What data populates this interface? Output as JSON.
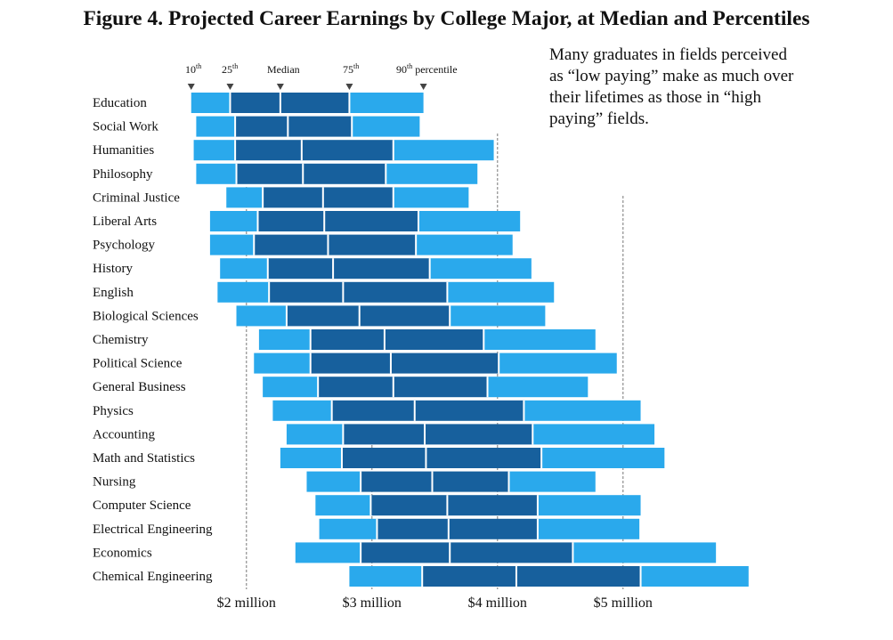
{
  "title": "Figure 4.  Projected Career Earnings by College Major, at Median and Percentiles",
  "annotation_lines": [
    "Many graduates in fields perceived",
    "as “low paying”  make as much over",
    "their lifetimes as those in “high",
    "paying”  fields."
  ],
  "colors": {
    "outer": "#2aa9ec",
    "inner": "#17609d",
    "divider": "#ffffff",
    "gridline": "#777777",
    "marker": "#444444"
  },
  "chart_data": {
    "type": "bar",
    "subtype": "floating percentile range bars",
    "unit": "dollars",
    "xlim": [
      1200000,
      5900000
    ],
    "x_ticks": [
      {
        "value": 2000000,
        "label": "$2 million"
      },
      {
        "value": 3000000,
        "label": "$3 million"
      },
      {
        "value": 4000000,
        "label": "$4 million"
      },
      {
        "value": 5000000,
        "label": "$5 million"
      }
    ],
    "percentile_labels": [
      {
        "base": "10",
        "sup": "th",
        "rest": "",
        "ref_series": 0
      },
      {
        "base": "25",
        "sup": "th",
        "rest": "",
        "ref_series": 1
      },
      {
        "base": "Median",
        "sup": "",
        "rest": "",
        "ref_series": 2
      },
      {
        "base": "75",
        "sup": "th",
        "rest": "",
        "ref_series": 3
      },
      {
        "base": "90",
        "sup": "th",
        "rest": " percentile",
        "ref_series": 4
      }
    ],
    "series_keys": [
      "p10",
      "p25",
      "median",
      "p75",
      "p90"
    ],
    "categories": [
      {
        "name": "Education",
        "p10": 1560000,
        "p25": 1870000,
        "median": 2270000,
        "p75": 2820000,
        "p90": 3410000
      },
      {
        "name": "Social Work",
        "p10": 1600000,
        "p25": 1910000,
        "median": 2330000,
        "p75": 2840000,
        "p90": 3380000
      },
      {
        "name": "Humanities",
        "p10": 1580000,
        "p25": 1910000,
        "median": 2440000,
        "p75": 3170000,
        "p90": 3970000
      },
      {
        "name": "Philosophy",
        "p10": 1600000,
        "p25": 1920000,
        "median": 2450000,
        "p75": 3110000,
        "p90": 3840000
      },
      {
        "name": "Criminal Justice",
        "p10": 1840000,
        "p25": 2130000,
        "median": 2610000,
        "p75": 3170000,
        "p90": 3770000
      },
      {
        "name": "Liberal Arts",
        "p10": 1710000,
        "p25": 2090000,
        "median": 2620000,
        "p75": 3370000,
        "p90": 4180000
      },
      {
        "name": "Psychology",
        "p10": 1710000,
        "p25": 2060000,
        "median": 2650000,
        "p75": 3350000,
        "p90": 4120000
      },
      {
        "name": "History",
        "p10": 1790000,
        "p25": 2170000,
        "median": 2690000,
        "p75": 3460000,
        "p90": 4270000
      },
      {
        "name": "English",
        "p10": 1770000,
        "p25": 2180000,
        "median": 2770000,
        "p75": 3600000,
        "p90": 4450000
      },
      {
        "name": "Biological Sciences",
        "p10": 1920000,
        "p25": 2320000,
        "median": 2900000,
        "p75": 3620000,
        "p90": 4380000
      },
      {
        "name": "Chemistry",
        "p10": 2100000,
        "p25": 2510000,
        "median": 3100000,
        "p75": 3890000,
        "p90": 4780000
      },
      {
        "name": "Political Science",
        "p10": 2060000,
        "p25": 2510000,
        "median": 3150000,
        "p75": 4010000,
        "p90": 4950000
      },
      {
        "name": "General Business",
        "p10": 2130000,
        "p25": 2570000,
        "median": 3170000,
        "p75": 3920000,
        "p90": 4720000
      },
      {
        "name": "Physics",
        "p10": 2210000,
        "p25": 2680000,
        "median": 3340000,
        "p75": 4210000,
        "p90": 5140000
      },
      {
        "name": "Accounting",
        "p10": 2320000,
        "p25": 2770000,
        "median": 3420000,
        "p75": 4280000,
        "p90": 5250000
      },
      {
        "name": "Math and Statistics",
        "p10": 2270000,
        "p25": 2760000,
        "median": 3430000,
        "p75": 4350000,
        "p90": 5330000
      },
      {
        "name": "Nursing",
        "p10": 2480000,
        "p25": 2910000,
        "median": 3480000,
        "p75": 4090000,
        "p90": 4780000
      },
      {
        "name": "Computer Science",
        "p10": 2550000,
        "p25": 2990000,
        "median": 3600000,
        "p75": 4320000,
        "p90": 5140000
      },
      {
        "name": "Electrical Engineering",
        "p10": 2580000,
        "p25": 3040000,
        "median": 3610000,
        "p75": 4320000,
        "p90": 5130000
      },
      {
        "name": "Economics",
        "p10": 2390000,
        "p25": 2910000,
        "median": 3620000,
        "p75": 4600000,
        "p90": 5740000
      },
      {
        "name": "Chemical Engineering",
        "p10": 2820000,
        "p25": 3400000,
        "median": 4150000,
        "p75": 5140000,
        "p90": 6000000
      }
    ]
  }
}
